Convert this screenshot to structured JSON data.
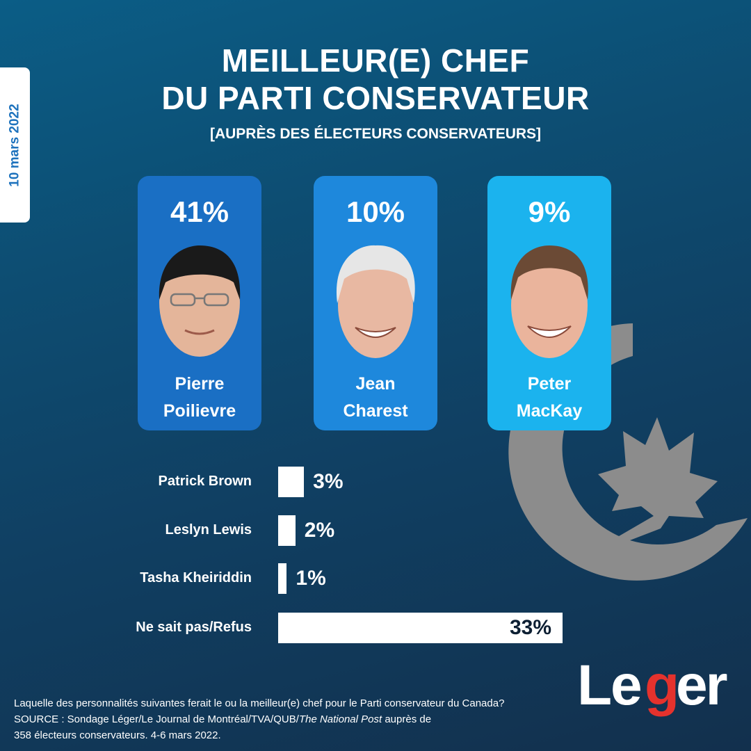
{
  "date": "10 mars 2022",
  "title_line1": "MEILLEUR(E) CHEF",
  "title_line2": "DU PARTI CONSERVATEUR",
  "subtitle": "[AUPRÈS DES ÉLECTEURS CONSERVATEURS]",
  "colors": {
    "card_1": "#1a6fc4",
    "card_2": "#1e88dc",
    "card_3": "#1bb3ee",
    "emblem": "#8c8c8c",
    "logo_red": "#e5322d"
  },
  "chart_data": {
    "type": "bar",
    "top_candidates": [
      {
        "pct_label": "41%",
        "value": 41,
        "first": "Pierre",
        "last": "Poilievre"
      },
      {
        "pct_label": "10%",
        "value": 10,
        "first": "Jean",
        "last": "Charest"
      },
      {
        "pct_label": "9%",
        "value": 9,
        "first": "Peter",
        "last": "MacKay"
      }
    ],
    "categories": [
      "Patrick Brown",
      "Leslyn Lewis",
      "Tasha Kheiriddin",
      "Ne sait pas/Refus"
    ],
    "values": [
      3,
      2,
      1,
      33
    ],
    "value_labels": [
      "3%",
      "2%",
      "1%",
      "33%"
    ]
  },
  "footnote": {
    "question": "Laquelle des personnalités suivantes ferait le ou la meilleur(e) chef pour le Parti conservateur du Canada?",
    "source_prefix": "SOURCE : Sondage Léger/Le Journal de Montréal/TVA/QUB/",
    "source_italic": "The National Post",
    "source_suffix": " auprès de",
    "line3": "358 électeurs conservateurs. 4-6 mars 2022."
  },
  "logo": {
    "text": "Leger"
  }
}
